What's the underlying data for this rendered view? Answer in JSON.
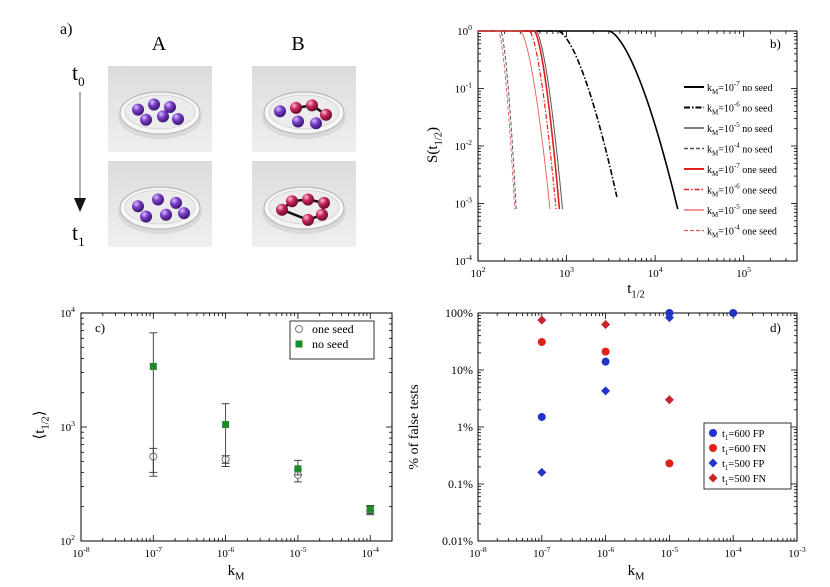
{
  "panel_a": {
    "label": "a)",
    "col_labels": [
      "A",
      "B"
    ],
    "t0_label": "t",
    "t0_sub": "0",
    "t1_label": "t",
    "t1_sub": "1",
    "colors": {
      "purple": "#7a3fc9",
      "magenta": "#c8245e",
      "dish": "#e6e6e6"
    }
  },
  "chart_data": [
    {
      "panel": "b)",
      "type": "line",
      "xlabel": "t",
      "xlabel_sub": "1/2",
      "ylabel": "S(t",
      "ylabel_sub": "1/2",
      "ylabel_close": ")",
      "xscale": "log",
      "yscale": "log",
      "xlim": [
        100,
        400000
      ],
      "ylim": [
        0.0001,
        1
      ],
      "xticks": [
        {
          "v": 100,
          "m": "10",
          "e": "2"
        },
        {
          "v": 1000,
          "m": "10",
          "e": "3"
        },
        {
          "v": 10000,
          "m": "10",
          "e": "4"
        },
        {
          "v": 100000,
          "m": "10",
          "e": "5"
        }
      ],
      "yticks": [
        {
          "v": 0.0001,
          "m": "10",
          "e": "-4"
        },
        {
          "v": 0.001,
          "m": "10",
          "e": "-3"
        },
        {
          "v": 0.01,
          "m": "10",
          "e": "-2"
        },
        {
          "v": 0.1,
          "m": "10",
          "e": "-1"
        },
        {
          "v": 1,
          "m": "10",
          "e": "0"
        }
      ],
      "legend_position": "right",
      "series": [
        {
          "name": "k_M=10^-7 no seed",
          "lk": "k",
          "ls": "M",
          "lm": "=10",
          "le": "-7",
          "lr": " no seed",
          "color": "#000000",
          "dash": "",
          "width": 1.6,
          "start": 3000,
          "end": 18000,
          "end_y": 0.0008
        },
        {
          "name": "k_M=10^-6 no seed",
          "lk": "k",
          "ls": "M",
          "lm": "=10",
          "le": "-6",
          "lr": " no seed",
          "color": "#000000",
          "dash": "6,2,1.5,2",
          "width": 1.6,
          "start": 800,
          "end": 3700,
          "end_y": 0.0013
        },
        {
          "name": "k_M=10^-5 no seed",
          "lk": "k",
          "ls": "M",
          "lm": "=10",
          "le": "-5",
          "lr": " no seed",
          "color": "#555555",
          "dash": "",
          "width": 1.0,
          "start": 450,
          "end": 900,
          "end_y": 0.0008
        },
        {
          "name": "k_M=10^-4 no seed",
          "lk": "k",
          "ls": "M",
          "lm": "=10",
          "le": "-4",
          "lr": " no seed",
          "color": "#555555",
          "dash": "4,2",
          "width": 1.0,
          "start": 180,
          "end": 270,
          "end_y": 0.0008
        },
        {
          "name": "k_M=10^-7 one seed",
          "lk": "k",
          "ls": "M",
          "lm": "=10",
          "le": "-7",
          "lr": " one seed",
          "color": "#e0201a",
          "dash": "",
          "width": 1.6,
          "start": 430,
          "end": 830,
          "end_y": 0.0008
        },
        {
          "name": "k_M=10^-6 one seed",
          "lk": "k",
          "ls": "M",
          "lm": "=10",
          "le": "-6",
          "lr": " one seed",
          "color": "#e0201a",
          "dash": "5,2,1.5,2",
          "width": 1.2,
          "start": 380,
          "end": 760,
          "end_y": 0.0008
        },
        {
          "name": "k_M=10^-5 one seed",
          "lk": "k",
          "ls": "M",
          "lm": "=10",
          "le": "-5",
          "lr": " one seed",
          "color": "#e65a55",
          "dash": "",
          "width": 0.9,
          "start": 300,
          "end": 650,
          "end_y": 0.0008
        },
        {
          "name": "k_M=10^-4 one seed",
          "lk": "k",
          "ls": "M",
          "lm": "=10",
          "le": "-4",
          "lr": " one seed",
          "color": "#e65a55",
          "dash": "4,2",
          "width": 0.9,
          "start": 170,
          "end": 260,
          "end_y": 0.0008
        }
      ]
    },
    {
      "panel": "c)",
      "type": "scatter",
      "xlabel": "k",
      "xlabel_sub": "M",
      "ylabel": "⟨t",
      "ylabel_sub": "1/2",
      "ylabel_close": "⟩",
      "xscale": "log",
      "yscale": "log",
      "xlim": [
        1e-08,
        0.0002
      ],
      "ylim": [
        100,
        10000
      ],
      "xticks": [
        {
          "v": 1e-08,
          "m": "10",
          "e": "-8"
        },
        {
          "v": 1e-07,
          "m": "10",
          "e": "-7"
        },
        {
          "v": 1e-06,
          "m": "10",
          "e": "-6"
        },
        {
          "v": 1e-05,
          "m": "10",
          "e": "-5"
        },
        {
          "v": 0.0001,
          "m": "10",
          "e": "-4"
        }
      ],
      "yticks": [
        {
          "v": 100,
          "m": "10",
          "e": "2"
        },
        {
          "v": 1000,
          "m": "10",
          "e": "3"
        },
        {
          "v": 10000,
          "m": "10",
          "e": "4"
        }
      ],
      "legend_position": "top-right",
      "series": [
        {
          "name": "one seed",
          "marker": "open-circle",
          "color": "#777777",
          "x": [
            1e-07,
            1e-06,
            1e-05,
            0.0001
          ],
          "y": [
            550,
            520,
            380,
            185
          ],
          "err_low": [
            370,
            480,
            330,
            170
          ],
          "err_high": [
            650,
            560,
            420,
            200
          ]
        },
        {
          "name": "no seed",
          "marker": "filled-square",
          "color": "#1f8a2a",
          "x": [
            1e-07,
            1e-06,
            1e-05,
            0.0001
          ],
          "y": [
            3400,
            1050,
            430,
            190
          ],
          "err_low": [
            400,
            450,
            380,
            175
          ],
          "err_high": [
            6700,
            1600,
            510,
            205
          ]
        }
      ]
    },
    {
      "panel": "d)",
      "type": "scatter",
      "xlabel": "k",
      "xlabel_sub": "M",
      "ylabel": "% of false tests",
      "xscale": "log",
      "yscale": "log",
      "xlim": [
        1e-08,
        0.001
      ],
      "ylim": [
        0.01,
        100
      ],
      "xticks": [
        {
          "v": 1e-08,
          "m": "10",
          "e": "-8"
        },
        {
          "v": 1e-07,
          "m": "10",
          "e": "-7"
        },
        {
          "v": 1e-06,
          "m": "10",
          "e": "-6"
        },
        {
          "v": 1e-05,
          "m": "10",
          "e": "-5"
        },
        {
          "v": 0.0001,
          "m": "10",
          "e": "-4"
        },
        {
          "v": 0.001,
          "m": "10",
          "e": "-3"
        }
      ],
      "yticks": [
        {
          "v": 0.01,
          "t": "0.01%"
        },
        {
          "v": 0.1,
          "t": "0.1%"
        },
        {
          "v": 1,
          "t": "1%"
        },
        {
          "v": 10,
          "t": "10%"
        },
        {
          "v": 100,
          "t": "100%"
        }
      ],
      "legend_position": "bottom-right",
      "series": [
        {
          "name": "t_1=600 FP",
          "lt": "t",
          "ls": "1",
          "lr": "=600 FP",
          "marker": "circle",
          "color": "#1f35c8",
          "x": [
            1e-07,
            1e-06,
            1e-05,
            0.0001
          ],
          "y": [
            1.5,
            14,
            100,
            100
          ]
        },
        {
          "name": "t_1=600 FN",
          "lt": "t",
          "ls": "1",
          "lr": "=600 FN",
          "marker": "circle",
          "color": "#e0201a",
          "x": [
            1e-07,
            1e-06,
            1e-05
          ],
          "y": [
            31,
            21,
            0.23
          ]
        },
        {
          "name": "t_1=500 FP",
          "lt": "t",
          "ls": "1",
          "lr": "=500 FP",
          "marker": "diamond",
          "color": "#1f35c8",
          "x": [
            1e-07,
            1e-06,
            1e-05
          ],
          "y": [
            0.16,
            4.3,
            83
          ]
        },
        {
          "name": "t_1=500 FN",
          "lt": "t",
          "ls": "1",
          "lr": "=500 FN",
          "marker": "diamond",
          "color": "#c8242a",
          "x": [
            1e-07,
            1e-06,
            1e-05
          ],
          "y": [
            75,
            63,
            3
          ]
        }
      ]
    }
  ]
}
